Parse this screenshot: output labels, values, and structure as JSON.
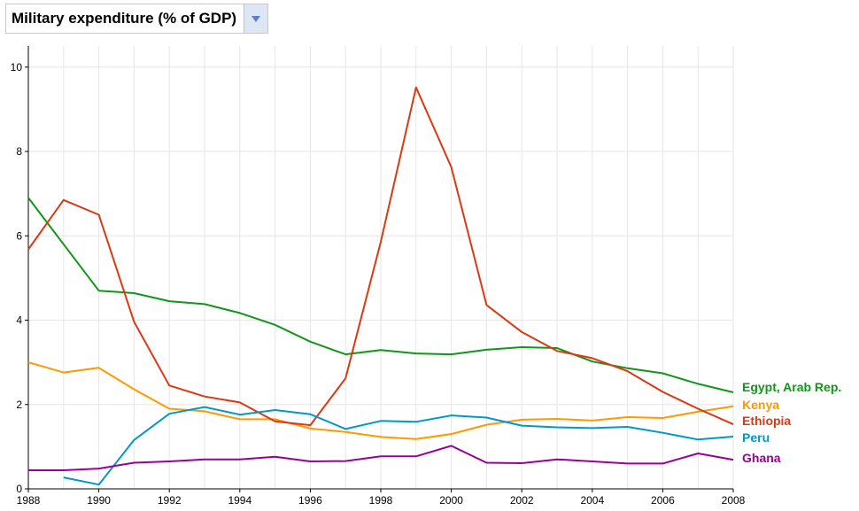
{
  "selector": {
    "label": "Military expenditure (% of GDP)",
    "icon": "chevron-down-icon"
  },
  "chart_data": {
    "type": "line",
    "title": "",
    "xlabel": "",
    "ylabel": "",
    "xlim": [
      1988,
      2008
    ],
    "ylim": [
      0,
      10.5
    ],
    "grid": true,
    "legend_placement": "right, at series ends",
    "x_ticks": [
      "1988",
      "1990",
      "1992",
      "1994",
      "1996",
      "1998",
      "2000",
      "2002",
      "2004",
      "2006",
      "2008"
    ],
    "y_ticks": [
      "0",
      "2",
      "4",
      "6",
      "8",
      "10"
    ],
    "x_tick_values": [
      1988,
      1990,
      1992,
      1994,
      1996,
      1998,
      2000,
      2002,
      2004,
      2006,
      2008
    ],
    "y_tick_values": [
      0,
      2,
      4,
      6,
      8,
      10
    ],
    "x": [
      1988,
      1989,
      1990,
      1991,
      1992,
      1993,
      1994,
      1995,
      1996,
      1997,
      1998,
      1999,
      2000,
      2001,
      2002,
      2003,
      2004,
      2005,
      2006,
      2007,
      2008
    ],
    "series": [
      {
        "name": "Egypt, Arab Rep.",
        "color": "#109618",
        "values": [
          6.9,
          5.8,
          4.7,
          4.64,
          4.45,
          4.38,
          4.17,
          3.89,
          3.49,
          3.19,
          3.29,
          3.21,
          3.19,
          3.3,
          3.36,
          3.34,
          3.02,
          2.86,
          2.74,
          2.49,
          2.29
        ]
      },
      {
        "name": "Kenya",
        "color": "#ff9900",
        "values": [
          3.0,
          2.76,
          2.87,
          2.36,
          1.9,
          1.84,
          1.65,
          1.65,
          1.43,
          1.35,
          1.23,
          1.18,
          1.3,
          1.52,
          1.64,
          1.66,
          1.62,
          1.7,
          1.68,
          1.83,
          1.96
        ]
      },
      {
        "name": "Ethiopia",
        "color": "#dc3912",
        "values": [
          5.68,
          6.85,
          6.5,
          3.96,
          2.45,
          2.19,
          2.05,
          1.6,
          1.51,
          2.62,
          5.86,
          9.52,
          7.63,
          4.36,
          3.72,
          3.27,
          3.1,
          2.79,
          2.3,
          1.9,
          1.53
        ]
      },
      {
        "name": "Peru",
        "color": "#0099c6",
        "values": [
          null,
          0.27,
          0.1,
          1.16,
          1.78,
          1.94,
          1.76,
          1.87,
          1.77,
          1.42,
          1.61,
          1.59,
          1.74,
          1.69,
          1.5,
          1.46,
          1.44,
          1.47,
          1.33,
          1.17,
          1.24
        ]
      },
      {
        "name": "Ghana",
        "color": "#990099",
        "values": [
          0.44,
          0.44,
          0.48,
          0.62,
          0.65,
          0.7,
          0.7,
          0.76,
          0.65,
          0.66,
          0.77,
          0.77,
          1.02,
          0.62,
          0.61,
          0.7,
          0.65,
          0.6,
          0.6,
          0.84,
          0.69
        ]
      }
    ]
  }
}
